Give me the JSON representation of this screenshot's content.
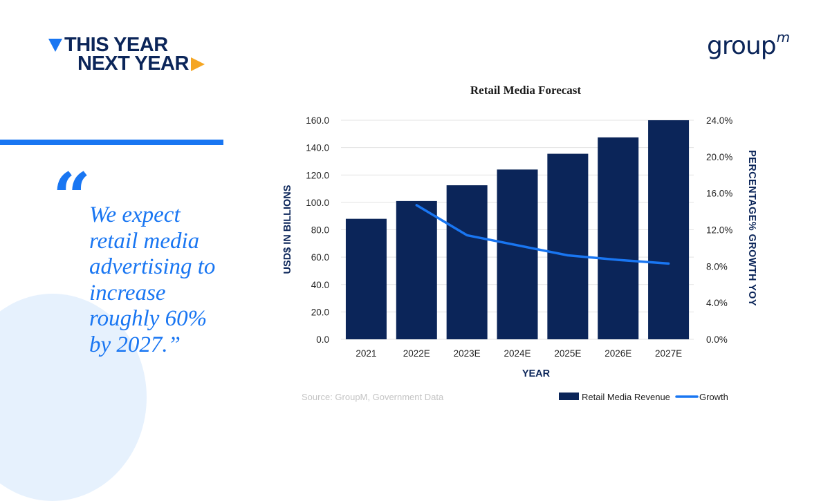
{
  "header": {
    "logo_line1": "THIS YEAR",
    "logo_line2": "NEXT YEAR",
    "brand": "group",
    "brand_sup": "m"
  },
  "quote": {
    "mark": "“",
    "text": "We expect retail media advertising to increase roughly 60% by 2027.”"
  },
  "source": "Source: GroupM, Government Data",
  "colors": {
    "navy": "#0b2559",
    "blue": "#1976f2",
    "orange": "#f5a623",
    "grid": "#e3e3e3",
    "circle": "#e6f1fd"
  },
  "chart_data": {
    "type": "bar",
    "title": "Retail Media Forecast",
    "xlabel": "YEAR",
    "ylabel": "USD$ IN BILLIONS",
    "y2label": "PERCENTAGE% GROWTH YOY",
    "categories": [
      "2021",
      "2022E",
      "2023E",
      "2024E",
      "2025E",
      "2026E",
      "2027E"
    ],
    "ylim": [
      0,
      160
    ],
    "y_ticks": [
      "0.0",
      "20.0",
      "40.0",
      "60.0",
      "80.0",
      "100.0",
      "120.0",
      "140.0",
      "160.0"
    ],
    "y2lim": [
      0,
      24
    ],
    "y2_ticks": [
      "0.0%",
      "4.0%",
      "8.0%",
      "12.0%",
      "16.0%",
      "20.0%",
      "24.0%"
    ],
    "grid": true,
    "legend_position": "bottom-right",
    "series": [
      {
        "name": "Retail Media Revenue",
        "type": "bar",
        "axis": "left",
        "color": "#0b2559",
        "values": [
          88.0,
          101.0,
          112.5,
          124.0,
          135.5,
          147.5,
          160.0
        ]
      },
      {
        "name": "Growth",
        "type": "line",
        "axis": "right",
        "color": "#1976f2",
        "values": [
          null,
          14.7,
          11.4,
          10.3,
          9.2,
          8.7,
          8.3
        ]
      }
    ]
  }
}
